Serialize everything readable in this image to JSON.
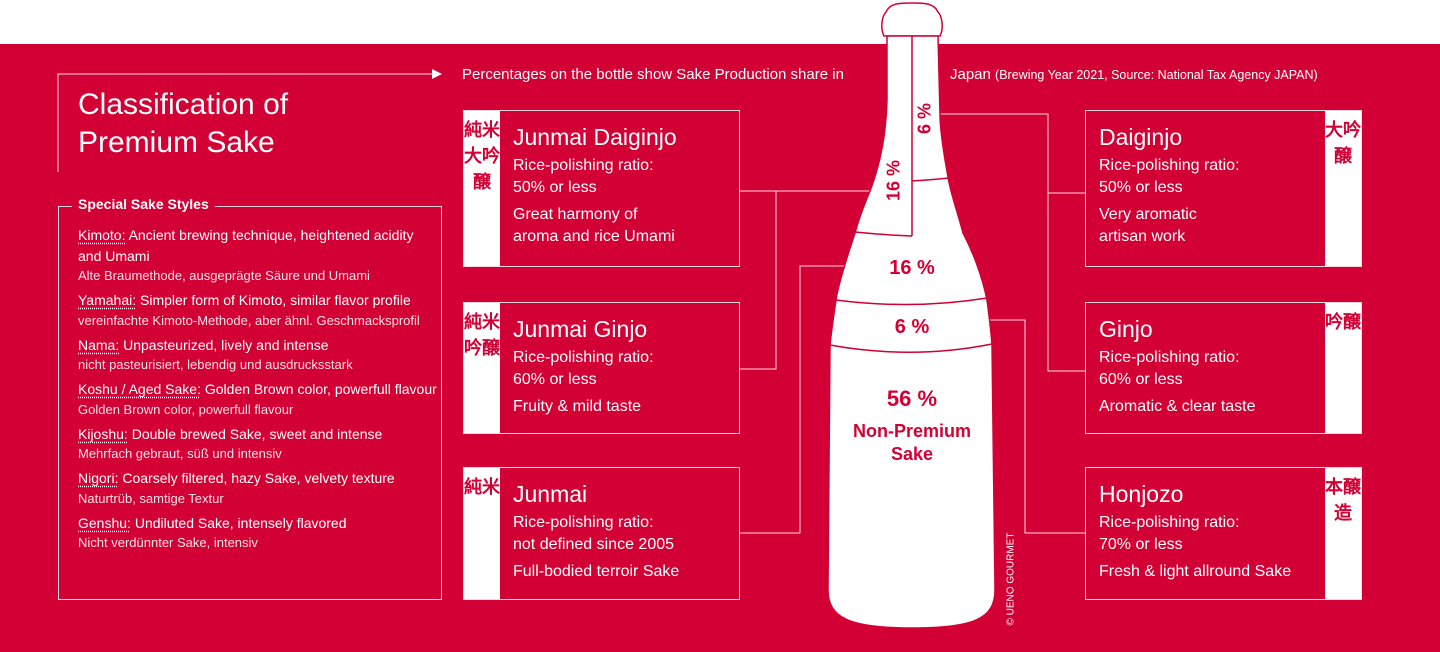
{
  "header": {
    "text": "Percentages on the bottle show Sake Production share in",
    "text_cont": "Japan",
    "source": "(Brewing Year 2021, Source: National Tax Agency JAPAN)"
  },
  "title": {
    "line1": "Classification of",
    "line2": "Premium Sake"
  },
  "special_styles": {
    "label": "Special Sake Styles",
    "items": [
      {
        "term": "Kimoto:",
        "en": " Ancient brewing technique, heightened acidity and Umami",
        "de": "Alte Braumethode, ausgeprägte Säure und Umami"
      },
      {
        "term": "Yamahai:",
        "en": " Simpler form of Kimoto, similar flavor profile",
        "de": "vereinfachte Kimoto-Methode, aber ähnl. Geschmacksprofil"
      },
      {
        "term": "Nama:",
        "en": " Unpasteurized, lively and intense",
        "de": "nicht pasteurisiert, lebendig und ausdrucksstark"
      },
      {
        "term": "Koshu / Aged Sake:",
        "en": "  Golden Brown color, powerfull flavour",
        "de": "Golden Brown color, powerfull flavour"
      },
      {
        "term": "Kijoshu:",
        "en": " Double brewed Sake, sweet and intense",
        "de": "Mehrfach gebraut, süß und intensiv"
      },
      {
        "term": "Nigori:",
        "en": " Coarsely filtered, hazy Sake, velvety texture",
        "de": "Naturtrüb, samtige Textur"
      },
      {
        "term": "Genshu:",
        "en": " Undiluted Sake, intensely flavored",
        "de": "Nicht verdünnter Sake, intensiv"
      }
    ]
  },
  "boxes_left": [
    {
      "kanji": "純米大吟醸",
      "title": "Junmai Daiginjo",
      "ratio_label": "Rice-polishing ratio:",
      "ratio": "50% or less",
      "desc1": "Great harmony of",
      "desc2": "aroma and rice Umami"
    },
    {
      "kanji": "純米吟醸",
      "title": "Junmai Ginjo",
      "ratio_label": "Rice-polishing ratio:",
      "ratio": "60% or less",
      "desc1": "Fruity & mild taste"
    },
    {
      "kanji": "純米",
      "title": "Junmai",
      "ratio_label": "Rice-polishing ratio:",
      "ratio": "not defined since 2005",
      "desc1": "Full-bodied terroir Sake"
    }
  ],
  "boxes_right": [
    {
      "kanji": "大吟醸",
      "title": "Daiginjo",
      "ratio_label": "Rice-polishing ratio:",
      "ratio": "50% or less",
      "desc1": "Very aromatic",
      "desc2": "artisan work"
    },
    {
      "kanji": "吟醸",
      "title": "Ginjo",
      "ratio_label": "Rice-polishing ratio:",
      "ratio": "60% or less",
      "desc1": "Aromatic & clear taste"
    },
    {
      "kanji": "本醸造",
      "title": "Honjozo",
      "ratio_label": "Rice-polishing ratio:",
      "ratio": "70% or less",
      "desc1": "Fresh & light allround Sake"
    }
  ],
  "bottle": {
    "junmai_daiginjo": "16 %",
    "daiginjo": "6 %",
    "junmai_ginjo_junmai": "16 %",
    "ginjo_honjozo": "6 %",
    "non_premium": "56 %",
    "non_premium_label1": "Non-Premium",
    "non_premium_label2": "Sake"
  },
  "copyright": "© UENO GOURMET",
  "colors": {
    "brand_red": "#D20034",
    "white": "#FFFFFF"
  }
}
